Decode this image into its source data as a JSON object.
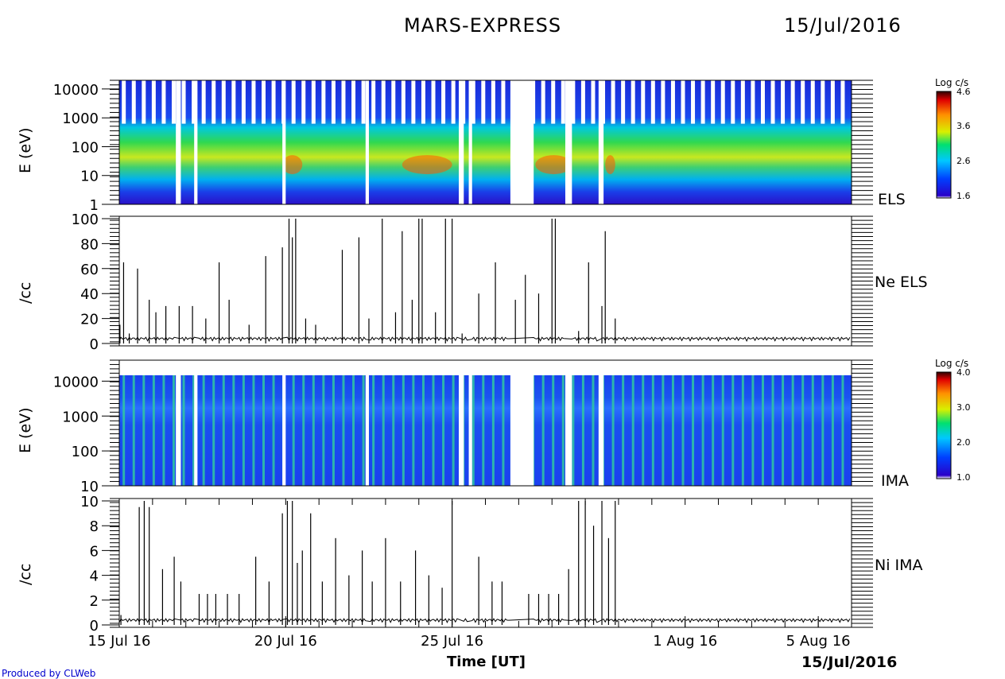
{
  "header": {
    "mission": "MARS-EXPRESS",
    "date": "15/Jul/2016"
  },
  "footer": {
    "credit": "Produced by CLWeb",
    "time_axis_label": "Time [UT]",
    "date": "15/Jul/2016"
  },
  "colorbars": [
    {
      "title": "Log c/s",
      "ticks": [
        "4.6",
        "3.6",
        "2.6",
        "1.6"
      ]
    },
    {
      "title": "Log c/s",
      "ticks": [
        "4.0",
        "3.0",
        "2.0",
        "1.0"
      ]
    }
  ],
  "chart_data": [
    {
      "type": "heatmap",
      "panel_label": "ELS",
      "ylabel": "E (eV)",
      "yscale": "log",
      "yticks": [
        "10000",
        "1000",
        "100",
        "10",
        "1"
      ],
      "ylim": [
        1,
        20000
      ],
      "colorbar_range": [
        1.6,
        4.6
      ],
      "data_gaps_days": [
        [
          1.7,
          1.85
        ],
        [
          2.25,
          2.35
        ],
        [
          4.9,
          5.0
        ],
        [
          7.4,
          7.5
        ],
        [
          10.2,
          10.35
        ],
        [
          10.5,
          10.6
        ],
        [
          11.75,
          12.45
        ],
        [
          13.4,
          13.6
        ],
        [
          14.4,
          14.55
        ]
      ],
      "intense_regions_days": [
        [
          4.9,
          5.5
        ],
        [
          12.5,
          13.6
        ],
        [
          8.5,
          10.0
        ],
        [
          14.6,
          14.9
        ]
      ]
    },
    {
      "type": "line",
      "panel_label": "Ne ELS",
      "ylabel": "/cc",
      "yticks": [
        "100",
        "80",
        "60",
        "40",
        "20",
        "0"
      ],
      "ylim": [
        0,
        100
      ],
      "x": [
        0.02,
        0.13,
        0.3,
        0.55,
        0.9,
        1.1,
        1.4,
        1.8,
        2.2,
        2.6,
        3.0,
        3.3,
        3.9,
        4.4,
        4.9,
        5.1,
        5.2,
        5.3,
        5.6,
        5.9,
        6.7,
        7.2,
        7.5,
        7.9,
        8.3,
        8.5,
        8.8,
        9.0,
        9.1,
        9.5,
        9.8,
        10.0,
        10.3,
        10.8,
        11.3,
        11.9,
        12.2,
        12.6,
        13.0,
        13.1,
        13.8,
        14.1,
        14.5,
        14.6,
        14.9
      ],
      "y": [
        15,
        65,
        8,
        60,
        35,
        25,
        30,
        30,
        30,
        20,
        65,
        35,
        15,
        70,
        77,
        100,
        85,
        100,
        20,
        15,
        75,
        85,
        20,
        100,
        25,
        90,
        35,
        100,
        100,
        25,
        100,
        100,
        8,
        40,
        65,
        35,
        55,
        40,
        100,
        100,
        10,
        65,
        30,
        90,
        20
      ]
    },
    {
      "type": "heatmap",
      "panel_label": "IMA",
      "ylabel": "E (eV)",
      "yscale": "log",
      "yticks": [
        "10000",
        "1000",
        "100",
        "10"
      ],
      "ylim": [
        10,
        40000
      ],
      "colorbar_range": [
        1.0,
        4.0
      ],
      "data_gaps_days": [
        [
          1.7,
          1.85
        ],
        [
          2.25,
          2.35
        ],
        [
          4.9,
          5.0
        ],
        [
          7.4,
          7.5
        ],
        [
          10.2,
          10.35
        ],
        [
          10.5,
          10.6
        ],
        [
          11.75,
          12.45
        ],
        [
          13.4,
          13.6
        ],
        [
          14.4,
          14.55
        ]
      ]
    },
    {
      "type": "line",
      "panel_label": "Ni IMA",
      "ylabel": "/cc",
      "yticks": [
        "10",
        "8",
        "6",
        "4",
        "2",
        "0"
      ],
      "ylim": [
        0,
        10
      ],
      "xticks": [
        "15 Jul 16",
        "20 Jul 16",
        "25 Jul 16",
        "1 Aug 16",
        "5 Aug 16"
      ],
      "xtick_days": [
        0,
        5,
        10,
        17,
        21
      ],
      "x": [
        0.05,
        0.6,
        0.75,
        0.9,
        1.3,
        1.65,
        1.85,
        2.4,
        2.65,
        2.9,
        3.25,
        3.6,
        4.1,
        4.5,
        4.9,
        5.05,
        5.2,
        5.35,
        5.5,
        5.75,
        6.1,
        6.5,
        6.9,
        7.3,
        7.6,
        8.0,
        8.45,
        8.9,
        9.3,
        9.7,
        10.0,
        10.8,
        11.2,
        11.5,
        12.3,
        12.6,
        12.9,
        13.2,
        13.5,
        13.8,
        14.0,
        14.25,
        14.5,
        14.7,
        14.9
      ],
      "y": [
        0.8,
        9.5,
        10,
        9.5,
        4.5,
        5.5,
        3.5,
        2.5,
        2.5,
        2.5,
        2.5,
        2.5,
        5.5,
        3.5,
        9,
        10,
        10,
        5,
        6,
        9,
        3.5,
        7,
        4,
        6,
        3.5,
        7,
        3.5,
        6,
        4,
        3,
        10,
        5.5,
        3.5,
        3.5,
        2.5,
        2.5,
        2.5,
        2.5,
        4.5,
        10,
        10,
        8,
        10,
        7,
        10
      ]
    }
  ]
}
